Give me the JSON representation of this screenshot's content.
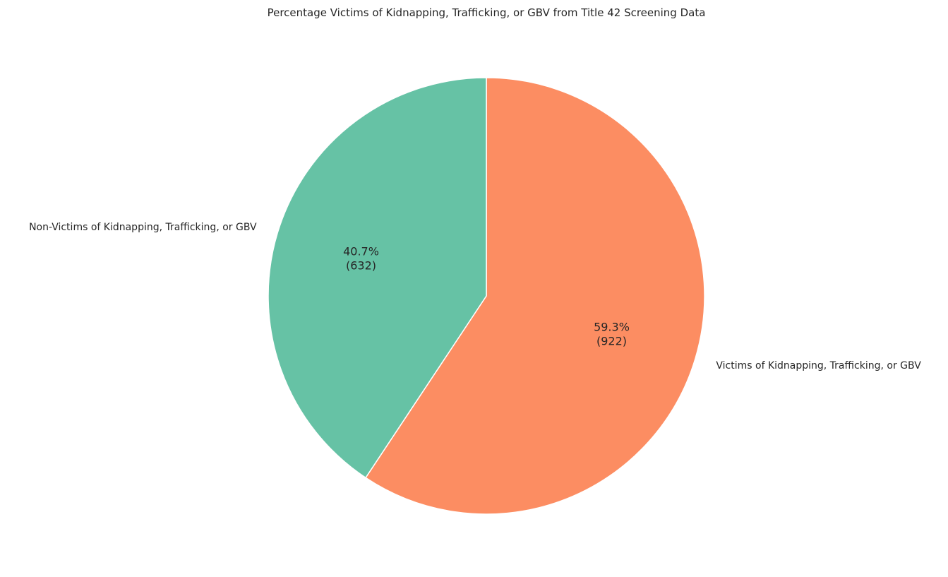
{
  "chart_data": {
    "type": "pie",
    "title": "Percentage Victims of Kidnapping, Trafficking, or GBV from Title 42 Screening Data",
    "slices": [
      {
        "label": "Victims of Kidnapping, Trafficking, or GBV",
        "value": 922,
        "percent_label": "59.3%",
        "count_label": "(922)",
        "color": "#fc8d62"
      },
      {
        "label": "Non-Victims of Kidnapping, Trafficking, or GBV",
        "value": 632,
        "percent_label": "40.7%",
        "count_label": "(632)",
        "color": "#66c2a5"
      }
    ],
    "start_angle_deg": 90,
    "direction": "counterclockwise",
    "edge_color": "#ffffff"
  }
}
